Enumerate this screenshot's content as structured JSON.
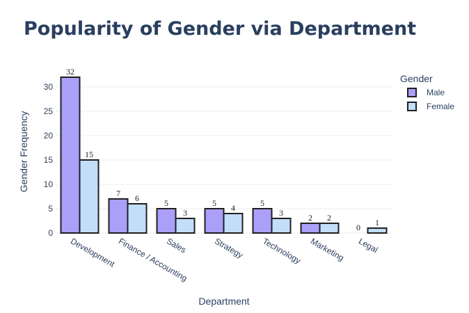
{
  "chart_data": {
    "type": "bar",
    "title": "Popularity of Gender via Department",
    "xlabel": "Department",
    "ylabel": "Gender Frequency",
    "categories": [
      "Development",
      "Finance / Accounting",
      "Sales",
      "Strategy",
      "Technology",
      "Marketing",
      "Legal"
    ],
    "series": [
      {
        "name": "Male",
        "values": [
          32,
          7,
          5,
          5,
          5,
          2,
          0
        ],
        "color": "#ab9ff9"
      },
      {
        "name": "Female",
        "values": [
          15,
          6,
          3,
          4,
          3,
          2,
          1
        ],
        "color": "#c2def9"
      }
    ],
    "ylim": [
      0,
      32
    ],
    "yticks": [
      0,
      5,
      10,
      15,
      20,
      25,
      30
    ],
    "grid": true,
    "legend": {
      "title": "Gender",
      "position": "top-right"
    },
    "bar_outline_color": "#1f1f1f"
  }
}
